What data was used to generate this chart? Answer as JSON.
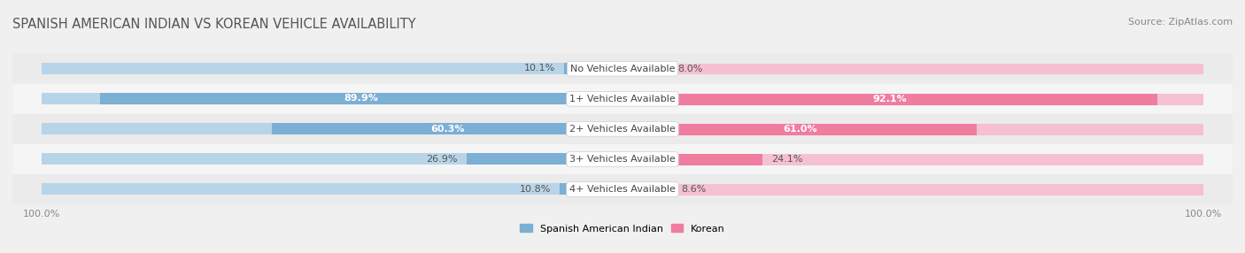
{
  "title": "SPANISH AMERICAN INDIAN VS KOREAN VEHICLE AVAILABILITY",
  "source": "Source: ZipAtlas.com",
  "categories": [
    "No Vehicles Available",
    "1+ Vehicles Available",
    "2+ Vehicles Available",
    "3+ Vehicles Available",
    "4+ Vehicles Available"
  ],
  "spanish_values": [
    10.1,
    89.9,
    60.3,
    26.9,
    10.8
  ],
  "korean_values": [
    8.0,
    92.1,
    61.0,
    24.1,
    8.6
  ],
  "spanish_color_bar": "#7bafd4",
  "korean_color_bar": "#f07ca0",
  "spanish_color_light": "#b8d4e8",
  "korean_color_light": "#f5c0d2",
  "background_color": "#f0f0f0",
  "row_bg_even": "#ebebeb",
  "row_bg_odd": "#f5f5f5",
  "max_value": 100.0,
  "legend_spanish": "Spanish American Indian",
  "legend_korean": "Korean",
  "title_fontsize": 10.5,
  "source_fontsize": 8,
  "label_fontsize": 8,
  "category_fontsize": 8,
  "tick_fontsize": 8
}
